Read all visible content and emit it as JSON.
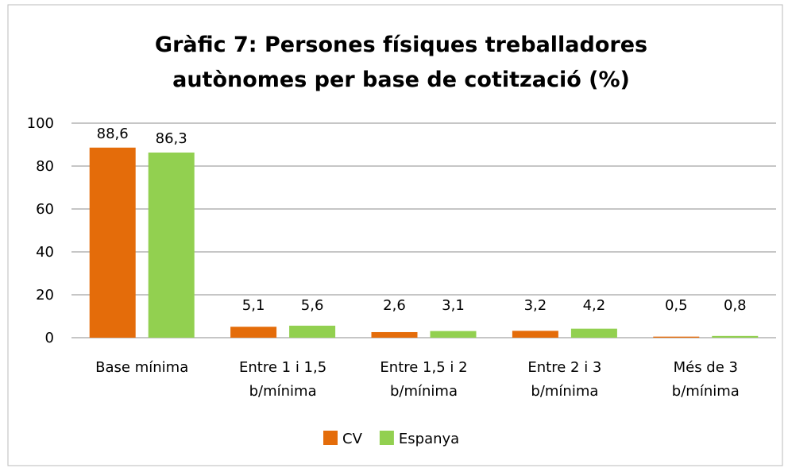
{
  "chart_data": {
    "type": "bar",
    "title": "Gràfic 7: Persones físiques treballadores\nautònomes per base de cotització (%)",
    "categories": [
      "Base mínima",
      "Entre 1 i 1,5\nb/mínima",
      "Entre 1,5 i 2\nb/mínima",
      "Entre 2 i 3\nb/mínima",
      "Més de 3\nb/mínima"
    ],
    "series": [
      {
        "name": "CV",
        "color": "#e46c0a",
        "values": [
          88.6,
          5.1,
          2.6,
          3.2,
          0.5
        ],
        "value_labels": [
          "88,6",
          "5,1",
          "2,6",
          "3,2",
          "0,5"
        ]
      },
      {
        "name": "Espanya",
        "color": "#92d050",
        "values": [
          86.3,
          5.6,
          3.1,
          4.2,
          0.8
        ],
        "value_labels": [
          "86,3",
          "5,6",
          "3,1",
          "4,2",
          "0,8"
        ]
      }
    ],
    "ylim": [
      0,
      100
    ],
    "yticks": [
      0,
      20,
      40,
      60,
      80,
      100
    ],
    "grid": true,
    "legend": "bottom"
  }
}
